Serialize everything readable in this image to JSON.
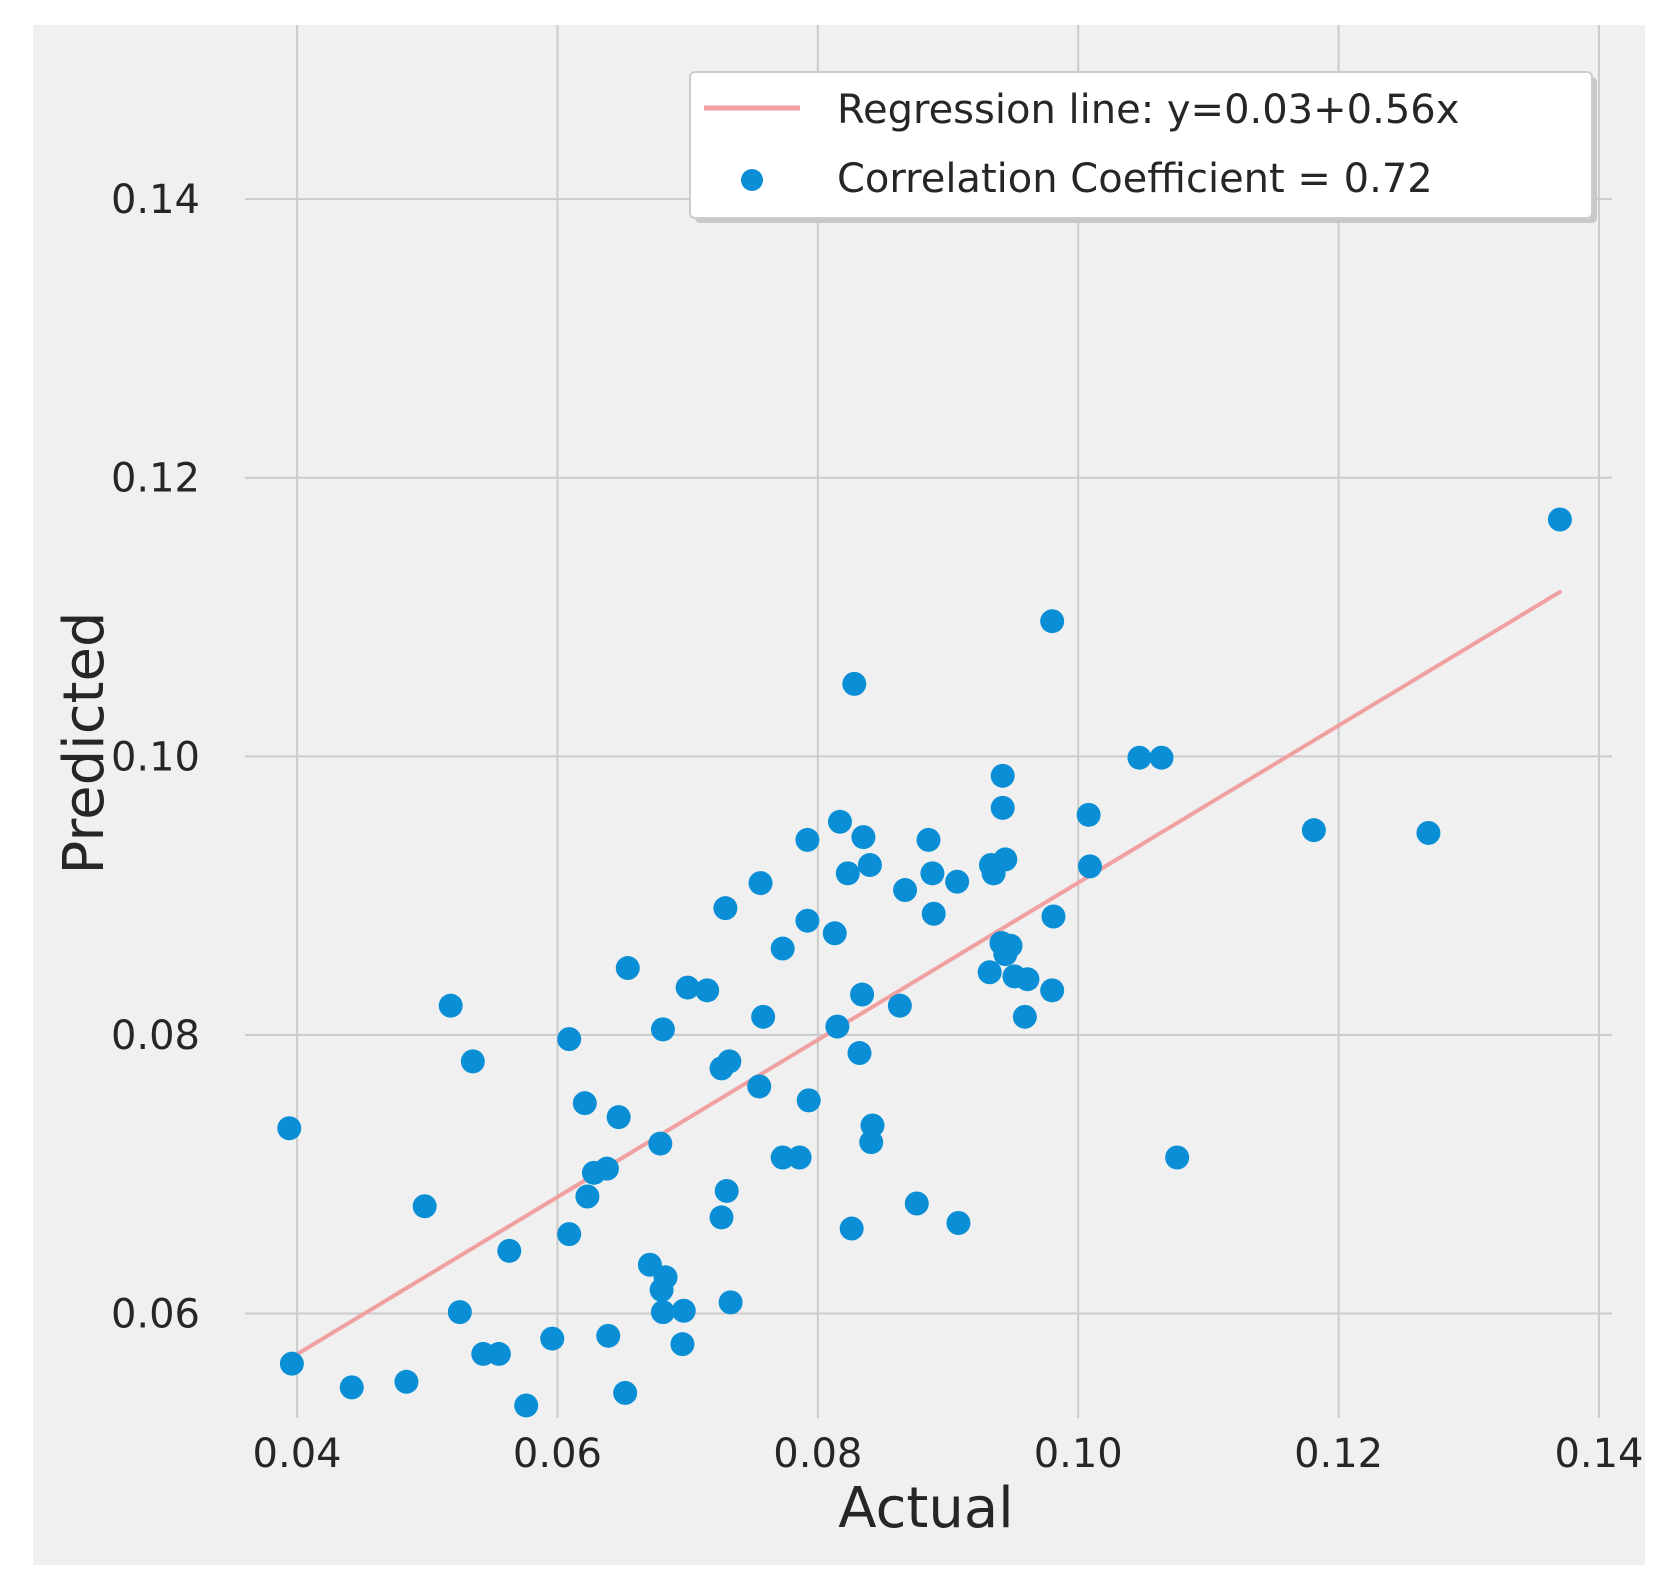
{
  "chart_data": {
    "type": "scatter",
    "title": "",
    "xlabel": "Actual",
    "ylabel": "Predicted",
    "xlim": [
      0.036,
      0.141
    ],
    "ylim": [
      0.0525,
      0.1525
    ],
    "x_ticks": [
      0.04,
      0.06,
      0.08,
      0.1,
      0.12,
      0.14
    ],
    "x_tick_labels": [
      "0.04",
      "0.06",
      "0.08",
      "0.10",
      "0.12",
      "0.14"
    ],
    "y_ticks": [
      0.06,
      0.08,
      0.1,
      0.12,
      0.14
    ],
    "y_tick_labels": [
      "0.06",
      "0.08",
      "0.10",
      "0.12",
      "0.14"
    ],
    "grid": true,
    "legend": {
      "placement": "top-right",
      "entries": [
        {
          "label": "Regression line: y=0.03+0.56x",
          "kind": "line",
          "color": "#f0a0a0"
        },
        {
          "label": "Correlation Coefficient = 0.72",
          "kind": "marker",
          "color": "#0a8fd6"
        }
      ]
    },
    "regression_line": {
      "name": "Regression line: y=0.03+0.56x",
      "x": [
        0.0395,
        0.137
      ],
      "y": [
        0.0568,
        0.1118
      ],
      "color": "#f0a0a0"
    },
    "series": [
      {
        "name": "Correlation Coefficient = 0.72",
        "color": "#0a8fd6",
        "points": [
          [
            0.137,
            0.117
          ],
          [
            0.098,
            0.1097
          ],
          [
            0.0828,
            0.1052
          ],
          [
            0.1047,
            0.0999
          ],
          [
            0.1064,
            0.0999
          ],
          [
            0.1008,
            0.0958
          ],
          [
            0.0942,
            0.0986
          ],
          [
            0.0942,
            0.0963
          ],
          [
            0.1181,
            0.0947
          ],
          [
            0.1269,
            0.0945
          ],
          [
            0.0817,
            0.0953
          ],
          [
            0.0835,
            0.0942
          ],
          [
            0.0792,
            0.094
          ],
          [
            0.0885,
            0.094
          ],
          [
            0.0944,
            0.0926
          ],
          [
            0.0933,
            0.0922
          ],
          [
            0.0935,
            0.0916
          ],
          [
            0.084,
            0.0922
          ],
          [
            0.0823,
            0.0916
          ],
          [
            0.1009,
            0.0921
          ],
          [
            0.0888,
            0.0916
          ],
          [
            0.0907,
            0.091
          ],
          [
            0.0756,
            0.0909
          ],
          [
            0.0867,
            0.0904
          ],
          [
            0.0729,
            0.0891
          ],
          [
            0.0792,
            0.0882
          ],
          [
            0.0889,
            0.0887
          ],
          [
            0.0981,
            0.0885
          ],
          [
            0.0813,
            0.0873
          ],
          [
            0.0773,
            0.0862
          ],
          [
            0.0941,
            0.0866
          ],
          [
            0.0944,
            0.0858
          ],
          [
            0.0948,
            0.0864
          ],
          [
            0.0932,
            0.0845
          ],
          [
            0.0951,
            0.0842
          ],
          [
            0.0961,
            0.084
          ],
          [
            0.0654,
            0.0848
          ],
          [
            0.07,
            0.0834
          ],
          [
            0.0715,
            0.0832
          ],
          [
            0.0834,
            0.0829
          ],
          [
            0.098,
            0.0832
          ],
          [
            0.0863,
            0.0821
          ],
          [
            0.0758,
            0.0813
          ],
          [
            0.0959,
            0.0813
          ],
          [
            0.0518,
            0.0821
          ],
          [
            0.0815,
            0.0806
          ],
          [
            0.0681,
            0.0804
          ],
          [
            0.0609,
            0.0797
          ],
          [
            0.0832,
            0.0787
          ],
          [
            0.0535,
            0.0781
          ],
          [
            0.0732,
            0.0781
          ],
          [
            0.0726,
            0.0776
          ],
          [
            0.0755,
            0.0763
          ],
          [
            0.0793,
            0.0753
          ],
          [
            0.0621,
            0.0751
          ],
          [
            0.0647,
            0.0741
          ],
          [
            0.0842,
            0.0735
          ],
          [
            0.0394,
            0.0733
          ],
          [
            0.0841,
            0.0723
          ],
          [
            0.0679,
            0.0722
          ],
          [
            0.0773,
            0.0712
          ],
          [
            0.0786,
            0.0712
          ],
          [
            0.1076,
            0.0712
          ],
          [
            0.0628,
            0.0701
          ],
          [
            0.0638,
            0.0704
          ],
          [
            0.0623,
            0.0684
          ],
          [
            0.073,
            0.0688
          ],
          [
            0.0498,
            0.0677
          ],
          [
            0.0876,
            0.0679
          ],
          [
            0.0726,
            0.0669
          ],
          [
            0.0908,
            0.0665
          ],
          [
            0.0826,
            0.0661
          ],
          [
            0.0609,
            0.0657
          ],
          [
            0.0563,
            0.0645
          ],
          [
            0.0671,
            0.0635
          ],
          [
            0.0683,
            0.0626
          ],
          [
            0.068,
            0.0617
          ],
          [
            0.0733,
            0.0608
          ],
          [
            0.0525,
            0.0601
          ],
          [
            0.0681,
            0.0601
          ],
          [
            0.0697,
            0.0602
          ],
          [
            0.0696,
            0.0578
          ],
          [
            0.0596,
            0.0582
          ],
          [
            0.0639,
            0.0584
          ],
          [
            0.0543,
            0.0571
          ],
          [
            0.0555,
            0.0571
          ],
          [
            0.0396,
            0.0564
          ],
          [
            0.0442,
            0.0547
          ],
          [
            0.0484,
            0.0551
          ],
          [
            0.0652,
            0.0543
          ],
          [
            0.0576,
            0.0534
          ]
        ]
      }
    ]
  }
}
